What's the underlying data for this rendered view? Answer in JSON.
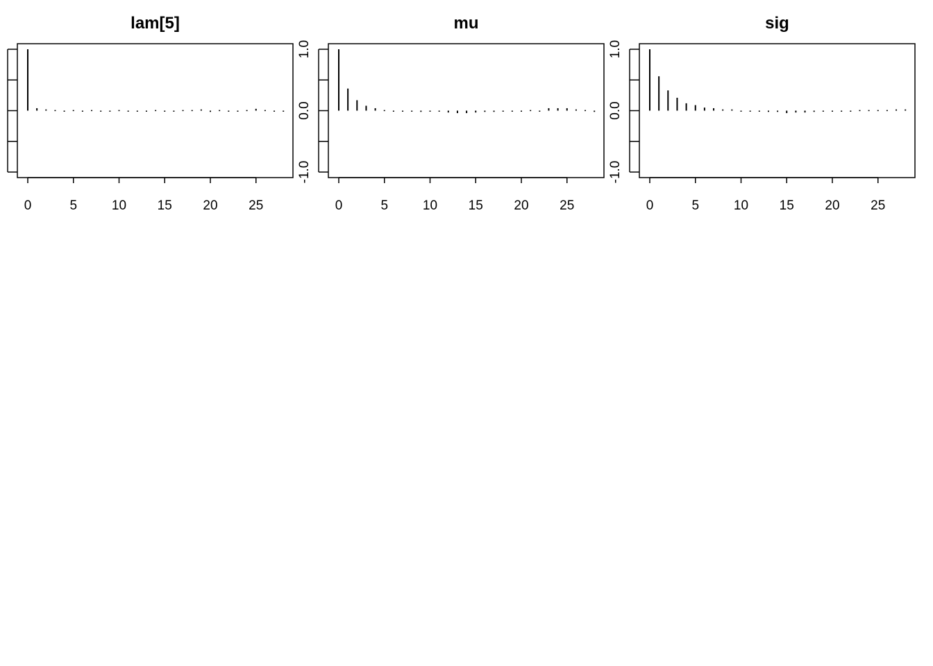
{
  "chart_data": [
    {
      "type": "bar",
      "title": "lam[5]",
      "xlabel": "",
      "ylabel": "",
      "xlim": [
        -1,
        29
      ],
      "ylim": [
        -1.1,
        1.1
      ],
      "x_ticks": [
        "0",
        "5",
        "10",
        "15",
        "20",
        "25"
      ],
      "y_ticks": [
        "-1.0",
        "0.0",
        "1.0"
      ],
      "x": [
        0,
        1,
        2,
        3,
        4,
        5,
        6,
        7,
        8,
        9,
        10,
        11,
        12,
        13,
        14,
        15,
        16,
        17,
        18,
        19,
        20,
        21,
        22,
        23,
        24,
        25,
        26,
        27,
        28
      ],
      "values": [
        1.0,
        0.04,
        0.02,
        0.01,
        -0.01,
        0.01,
        0.0,
        0.01,
        0.0,
        0.0,
        0.01,
        -0.01,
        -0.01,
        0.0,
        0.01,
        0.0,
        0.0,
        0.01,
        0.01,
        0.02,
        -0.02,
        0.01,
        0.0,
        0.0,
        0.01,
        0.03,
        0.01,
        0.0,
        0.0
      ]
    },
    {
      "type": "bar",
      "title": "mu",
      "xlabel": "",
      "ylabel": "",
      "xlim": [
        -1,
        29
      ],
      "ylim": [
        -1.1,
        1.1
      ],
      "x_ticks": [
        "0",
        "5",
        "10",
        "15",
        "20",
        "25"
      ],
      "y_ticks": [
        "-1.0",
        "0.0",
        "1.0"
      ],
      "x": [
        0,
        1,
        2,
        3,
        4,
        5,
        6,
        7,
        8,
        9,
        10,
        11,
        12,
        13,
        14,
        15,
        16,
        17,
        18,
        19,
        20,
        21,
        22,
        23,
        24,
        25,
        26,
        27,
        28
      ],
      "values": [
        1.0,
        0.36,
        0.17,
        0.08,
        0.04,
        0.01,
        0.0,
        0.0,
        0.0,
        -0.02,
        -0.01,
        -0.01,
        -0.03,
        -0.04,
        -0.04,
        -0.03,
        -0.02,
        -0.02,
        -0.01,
        -0.01,
        0.0,
        0.01,
        0.0,
        0.04,
        0.04,
        0.04,
        0.02,
        0.01,
        -0.02
      ]
    },
    {
      "type": "bar",
      "title": "sig",
      "xlabel": "",
      "ylabel": "",
      "xlim": [
        -1,
        29
      ],
      "ylim": [
        -1.1,
        1.1
      ],
      "x_ticks": [
        "0",
        "5",
        "10",
        "15",
        "20",
        "25"
      ],
      "y_ticks": [
        "-1.0",
        "0.0",
        "1.0"
      ],
      "x": [
        0,
        1,
        2,
        3,
        4,
        5,
        6,
        7,
        8,
        9,
        10,
        11,
        12,
        13,
        14,
        15,
        16,
        17,
        18,
        19,
        20,
        21,
        22,
        23,
        24,
        25,
        26,
        27,
        28
      ],
      "values": [
        1.0,
        0.56,
        0.33,
        0.21,
        0.12,
        0.09,
        0.05,
        0.04,
        0.02,
        0.02,
        0.0,
        -0.01,
        -0.01,
        -0.02,
        -0.02,
        -0.04,
        -0.03,
        -0.03,
        -0.02,
        -0.01,
        0.0,
        0.0,
        0.0,
        0.01,
        0.01,
        0.01,
        0.01,
        0.02,
        0.02
      ]
    }
  ]
}
